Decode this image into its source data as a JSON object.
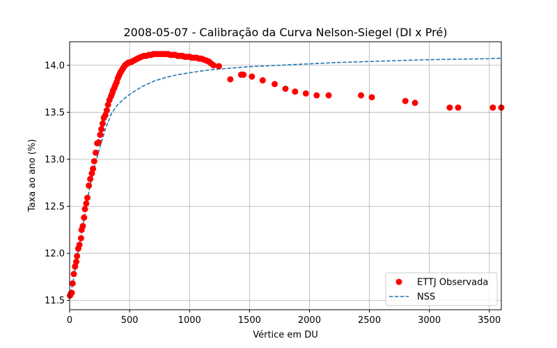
{
  "chart_data": {
    "type": "scatter",
    "title": "2008-05-07 - Calibração da Curva Nelson-Siegel (DI x Pré)",
    "xlabel": "Vértice em DU",
    "ylabel": "Taxa ao ano (%)",
    "xlim": [
      0,
      3600
    ],
    "ylim": [
      11.4,
      14.25
    ],
    "xticks": [
      0,
      500,
      1000,
      1500,
      2000,
      2500,
      3000,
      3500
    ],
    "yticks": [
      11.5,
      12.0,
      12.5,
      13.0,
      13.5,
      14.0
    ],
    "xtick_labels": [
      "0",
      "500",
      "1000",
      "1500",
      "2000",
      "2500",
      "3000",
      "3500"
    ],
    "ytick_labels": [
      "11.5",
      "12.0",
      "12.5",
      "13.0",
      "13.5",
      "14.0"
    ],
    "grid": true,
    "legend_position": "lower-right",
    "series": [
      {
        "name": "ETTJ Observada",
        "kind": "scatter",
        "color": "#ff0000",
        "x": [
          3,
          10,
          18,
          25,
          35,
          45,
          55,
          62,
          72,
          82,
          95,
          100,
          110,
          120,
          128,
          138,
          148,
          160,
          172,
          185,
          195,
          205,
          218,
          230,
          242,
          255,
          265,
          275,
          285,
          298,
          310,
          320,
          332,
          345,
          355,
          362,
          372,
          382,
          392,
          402,
          412,
          422,
          432,
          442,
          452,
          462,
          472,
          482,
          492,
          505,
          520,
          535,
          550,
          565,
          580,
          600,
          620,
          640,
          660,
          680,
          700,
          720,
          740,
          760,
          780,
          800,
          820,
          840,
          860,
          880,
          900,
          920,
          940,
          960,
          980,
          1000,
          1020,
          1040,
          1060,
          1080,
          1100,
          1120,
          1140,
          1160,
          1180,
          1200,
          1245,
          1340,
          1430,
          1450,
          1520,
          1610,
          1710,
          1800,
          1880,
          1970,
          2060,
          2160,
          2430,
          2520,
          2800,
          2880,
          3170,
          3240,
          3530,
          3600
        ],
        "y": [
          11.55,
          11.57,
          11.58,
          11.68,
          11.78,
          11.86,
          11.91,
          11.97,
          12.05,
          12.09,
          12.16,
          12.25,
          12.29,
          12.38,
          12.47,
          12.53,
          12.59,
          12.72,
          12.79,
          12.85,
          12.9,
          12.98,
          13.07,
          13.17,
          13.18,
          13.26,
          13.32,
          13.38,
          13.44,
          13.47,
          13.52,
          13.58,
          13.63,
          13.67,
          13.7,
          13.73,
          13.76,
          13.79,
          13.82,
          13.86,
          13.89,
          13.92,
          13.94,
          13.96,
          13.98,
          14.0,
          14.01,
          14.02,
          14.03,
          14.03,
          14.04,
          14.05,
          14.06,
          14.07,
          14.08,
          14.09,
          14.1,
          14.1,
          14.11,
          14.11,
          14.12,
          14.12,
          14.12,
          14.12,
          14.12,
          14.12,
          14.12,
          14.11,
          14.11,
          14.11,
          14.1,
          14.1,
          14.1,
          14.09,
          14.09,
          14.09,
          14.08,
          14.08,
          14.08,
          14.07,
          14.07,
          14.06,
          14.05,
          14.04,
          14.02,
          14.0,
          13.99,
          13.85,
          13.9,
          13.9,
          13.88,
          13.84,
          13.8,
          13.75,
          13.72,
          13.7,
          13.68,
          13.68,
          13.68,
          13.66,
          13.62,
          13.6,
          13.55,
          13.55,
          13.55,
          13.55
        ]
      },
      {
        "name": "NSS",
        "kind": "line",
        "style": "dashed",
        "color": "#1f77b4",
        "x": [
          0,
          25,
          50,
          75,
          100,
          125,
          150,
          175,
          200,
          250,
          300,
          350,
          400,
          450,
          500,
          600,
          700,
          800,
          900,
          1000,
          1100,
          1200,
          1300,
          1400,
          1500,
          1750,
          2000,
          2250,
          2500,
          2750,
          3000,
          3250,
          3500,
          3600
        ],
        "y": [
          11.52,
          11.67,
          11.86,
          12.04,
          12.22,
          12.4,
          12.58,
          12.74,
          12.88,
          13.12,
          13.33,
          13.49,
          13.58,
          13.64,
          13.69,
          13.77,
          13.83,
          13.87,
          13.9,
          13.92,
          13.94,
          13.955,
          13.965,
          13.975,
          13.985,
          14.0,
          14.015,
          14.03,
          14.04,
          14.05,
          14.06,
          14.065,
          14.07,
          14.075
        ]
      }
    ]
  }
}
